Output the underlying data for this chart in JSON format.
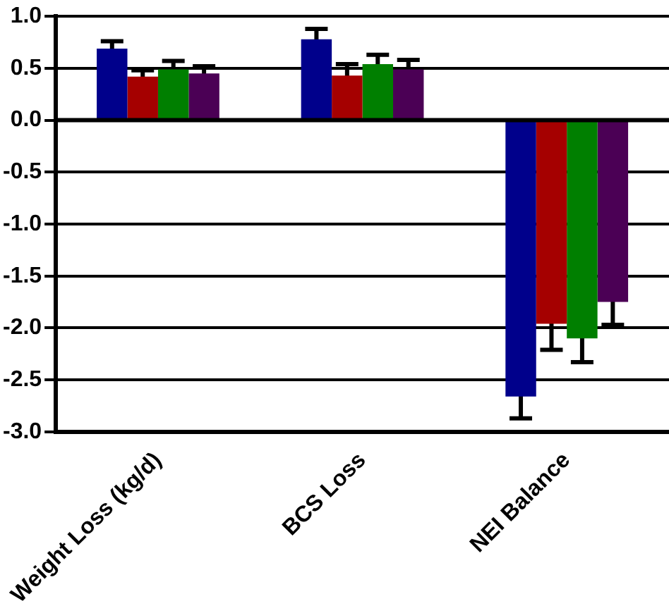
{
  "chart_data": {
    "type": "bar",
    "categories": [
      "Weight Loss (kg/d)",
      "BCS Loss",
      "NEI Balance"
    ],
    "series": [
      {
        "color": "#00008b",
        "values": [
          0.69,
          0.78,
          -2.66
        ],
        "errors": [
          0.07,
          0.1,
          0.21
        ]
      },
      {
        "color": "#a50000",
        "values": [
          0.42,
          0.43,
          -1.96
        ],
        "errors": [
          0.06,
          0.11,
          0.25
        ]
      },
      {
        "color": "#007f00",
        "values": [
          0.49,
          0.54,
          -2.1
        ],
        "errors": [
          0.08,
          0.09,
          0.23
        ]
      },
      {
        "color": "#4b0055",
        "values": [
          0.45,
          0.49,
          -1.75
        ],
        "errors": [
          0.07,
          0.09,
          0.22
        ]
      }
    ],
    "ylim": [
      -3,
      1
    ],
    "yticks": [
      {
        "value": -3,
        "label": "-3.0"
      },
      {
        "value": -2.5,
        "label": "-2.5"
      },
      {
        "value": -2,
        "label": "-2.0"
      },
      {
        "value": -1.5,
        "label": "-1.5"
      },
      {
        "value": -1,
        "label": "-1.0"
      },
      {
        "value": -0.5,
        "label": "-0.5"
      },
      {
        "value": 0,
        "label": "0.0"
      },
      {
        "value": 0.5,
        "label": "0.5"
      },
      {
        "value": 1,
        "label": "1.0"
      }
    ],
    "grid": "y",
    "legend": false
  }
}
